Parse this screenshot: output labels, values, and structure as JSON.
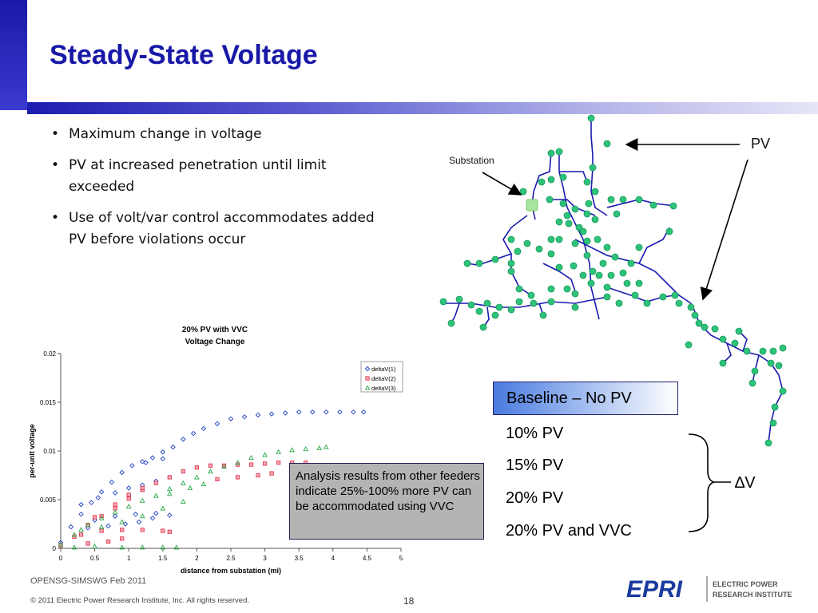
{
  "slide": {
    "title": "Steady-State Voltage",
    "bullets": [
      "Maximum change in voltage",
      "PV at increased penetration until limit exceeded",
      "Use of volt/var control accommodates added PV before violations occur"
    ]
  },
  "network": {
    "substation_label": "Substation",
    "pv_label": "PV",
    "feeder_color": "#1a1ab0",
    "pv_node_color": "#2ec27a",
    "substation_color": "#a8e6a0"
  },
  "cases": {
    "baseline": "Baseline – No PV",
    "list": [
      "10% PV",
      "15% PV",
      "20% PV",
      "20% PV and VVC"
    ],
    "delta_label": "∆V"
  },
  "callout": {
    "text": "Analysis results from other feeders indicate 25%-100% more PV can be accommodated using VVC"
  },
  "chart_data": {
    "type": "scatter",
    "title": "20% PV with VVC",
    "subtitle": "Voltage Change",
    "xlabel": "distance from substation (mi)",
    "ylabel": "per-unit voltage",
    "xlim": [
      0,
      5
    ],
    "ylim": [
      0,
      0.02
    ],
    "x_ticks": [
      "0",
      "0.5",
      "1",
      "1.5",
      "2",
      "2.5",
      "3",
      "3.5",
      "4",
      "4.5",
      "5"
    ],
    "y_ticks": [
      "0",
      "0.005",
      "0.01",
      "0.015",
      "0.02"
    ],
    "grid": false,
    "legend_position": "top-right",
    "series": [
      {
        "name": "deltaV(1)",
        "marker": "diamond",
        "color": "#1f3fbf",
        "points": [
          {
            "x": 0.0,
            "y": 0.0006
          },
          {
            "x": 0.15,
            "y": 0.0022
          },
          {
            "x": 0.3,
            "y": 0.0035
          },
          {
            "x": 0.45,
            "y": 0.0047
          },
          {
            "x": 0.6,
            "y": 0.0058
          },
          {
            "x": 0.75,
            "y": 0.0068
          },
          {
            "x": 0.9,
            "y": 0.0078
          },
          {
            "x": 1.05,
            "y": 0.0085
          },
          {
            "x": 1.2,
            "y": 0.0089
          },
          {
            "x": 1.35,
            "y": 0.0093
          },
          {
            "x": 1.5,
            "y": 0.0099
          },
          {
            "x": 1.65,
            "y": 0.0104
          },
          {
            "x": 1.8,
            "y": 0.0112
          },
          {
            "x": 1.95,
            "y": 0.0118
          },
          {
            "x": 2.1,
            "y": 0.0123
          },
          {
            "x": 2.3,
            "y": 0.0128
          },
          {
            "x": 2.5,
            "y": 0.0133
          },
          {
            "x": 2.7,
            "y": 0.0135
          },
          {
            "x": 2.9,
            "y": 0.0137
          },
          {
            "x": 3.1,
            "y": 0.0138
          },
          {
            "x": 3.3,
            "y": 0.0139
          },
          {
            "x": 3.5,
            "y": 0.014
          },
          {
            "x": 3.7,
            "y": 0.014
          },
          {
            "x": 3.9,
            "y": 0.014
          },
          {
            "x": 4.1,
            "y": 0.014
          },
          {
            "x": 4.3,
            "y": 0.014
          },
          {
            "x": 4.45,
            "y": 0.014
          },
          {
            "x": 0.3,
            "y": 0.0045
          },
          {
            "x": 0.55,
            "y": 0.0052
          },
          {
            "x": 0.8,
            "y": 0.0057
          },
          {
            "x": 1.0,
            "y": 0.0062
          },
          {
            "x": 1.2,
            "y": 0.0065
          },
          {
            "x": 1.4,
            "y": 0.0069
          },
          {
            "x": 0.4,
            "y": 0.0021
          },
          {
            "x": 0.7,
            "y": 0.0023
          },
          {
            "x": 0.95,
            "y": 0.0025
          },
          {
            "x": 1.15,
            "y": 0.0027
          },
          {
            "x": 1.35,
            "y": 0.0031
          },
          {
            "x": 1.6,
            "y": 0.0034
          },
          {
            "x": 0.5,
            "y": 0.0029
          },
          {
            "x": 0.8,
            "y": 0.0033
          },
          {
            "x": 1.1,
            "y": 0.0035
          },
          {
            "x": 1.4,
            "y": 0.0036
          },
          {
            "x": 1.25,
            "y": 0.0088
          },
          {
            "x": 1.5,
            "y": 0.0092
          }
        ]
      },
      {
        "name": "deltaV(2)",
        "marker": "square",
        "color": "#e0304a",
        "points": [
          {
            "x": 0.0,
            "y": 0.0003
          },
          {
            "x": 0.2,
            "y": 0.0012
          },
          {
            "x": 0.4,
            "y": 0.0024
          },
          {
            "x": 0.6,
            "y": 0.0033
          },
          {
            "x": 0.8,
            "y": 0.0041
          },
          {
            "x": 1.0,
            "y": 0.0051
          },
          {
            "x": 1.2,
            "y": 0.006
          },
          {
            "x": 1.4,
            "y": 0.0067
          },
          {
            "x": 1.6,
            "y": 0.0073
          },
          {
            "x": 1.8,
            "y": 0.0079
          },
          {
            "x": 2.0,
            "y": 0.0083
          },
          {
            "x": 2.2,
            "y": 0.0085
          },
          {
            "x": 2.4,
            "y": 0.0085
          },
          {
            "x": 2.6,
            "y": 0.0086
          },
          {
            "x": 2.8,
            "y": 0.0086
          },
          {
            "x": 3.0,
            "y": 0.0087
          },
          {
            "x": 3.2,
            "y": 0.0088
          },
          {
            "x": 3.4,
            "y": 0.0088
          },
          {
            "x": 3.6,
            "y": 0.0088
          },
          {
            "x": 2.3,
            "y": 0.0071
          },
          {
            "x": 2.6,
            "y": 0.0073
          },
          {
            "x": 2.9,
            "y": 0.0075
          },
          {
            "x": 3.1,
            "y": 0.0077
          },
          {
            "x": 0.3,
            "y": 0.0014
          },
          {
            "x": 0.6,
            "y": 0.0018
          },
          {
            "x": 0.9,
            "y": 0.0019
          },
          {
            "x": 1.2,
            "y": 0.0019
          },
          {
            "x": 1.5,
            "y": 0.0018
          },
          {
            "x": 1.6,
            "y": 0.0017
          },
          {
            "x": 0.5,
            "y": 0.0032
          },
          {
            "x": 0.8,
            "y": 0.0045
          },
          {
            "x": 1.0,
            "y": 0.0055
          },
          {
            "x": 1.2,
            "y": 0.0062
          },
          {
            "x": 0.4,
            "y": 0.0005
          },
          {
            "x": 0.7,
            "y": 0.0007
          },
          {
            "x": 0.9,
            "y": 0.001
          }
        ]
      },
      {
        "name": "deltaV(3)",
        "marker": "triangle",
        "color": "#2aa84a",
        "points": [
          {
            "x": 0.0,
            "y": 0.0004
          },
          {
            "x": 0.2,
            "y": 0.0014
          },
          {
            "x": 0.4,
            "y": 0.0024
          },
          {
            "x": 0.6,
            "y": 0.0031
          },
          {
            "x": 0.8,
            "y": 0.0037
          },
          {
            "x": 1.0,
            "y": 0.0043
          },
          {
            "x": 1.2,
            "y": 0.0049
          },
          {
            "x": 1.4,
            "y": 0.0054
          },
          {
            "x": 1.6,
            "y": 0.0061
          },
          {
            "x": 1.8,
            "y": 0.0067
          },
          {
            "x": 2.0,
            "y": 0.0073
          },
          {
            "x": 2.2,
            "y": 0.0079
          },
          {
            "x": 2.4,
            "y": 0.0084
          },
          {
            "x": 2.6,
            "y": 0.0088
          },
          {
            "x": 2.8,
            "y": 0.0093
          },
          {
            "x": 3.0,
            "y": 0.0096
          },
          {
            "x": 3.2,
            "y": 0.0099
          },
          {
            "x": 3.4,
            "y": 0.0101
          },
          {
            "x": 3.6,
            "y": 0.0102
          },
          {
            "x": 3.8,
            "y": 0.0103
          },
          {
            "x": 3.9,
            "y": 0.0104
          },
          {
            "x": 0.3,
            "y": 0.0019
          },
          {
            "x": 0.6,
            "y": 0.0022
          },
          {
            "x": 0.9,
            "y": 0.0027
          },
          {
            "x": 1.2,
            "y": 0.0033
          },
          {
            "x": 1.5,
            "y": 0.0041
          },
          {
            "x": 1.8,
            "y": 0.0048
          },
          {
            "x": 0.5,
            "y": 0.0002
          },
          {
            "x": 0.9,
            "y": 0.0001
          },
          {
            "x": 1.2,
            "y": 0.0001
          },
          {
            "x": 1.5,
            "y": 0.0001
          },
          {
            "x": 1.7,
            "y": 0.0001
          },
          {
            "x": 0.2,
            "y": 0.0001
          },
          {
            "x": 1.6,
            "y": 0.0056
          },
          {
            "x": 1.9,
            "y": 0.0062
          },
          {
            "x": 2.1,
            "y": 0.0066
          }
        ]
      }
    ]
  },
  "footer": {
    "event": "OPENSG-SIMSWG Feb 2011",
    "copyright": "© 2011 Electric Power Research Institute, Inc. All rights reserved.",
    "page": "18",
    "logo_text": "EPRI",
    "logo_tagline_1": "ELECTRIC POWER",
    "logo_tagline_2": "RESEARCH INSTITUTE"
  }
}
